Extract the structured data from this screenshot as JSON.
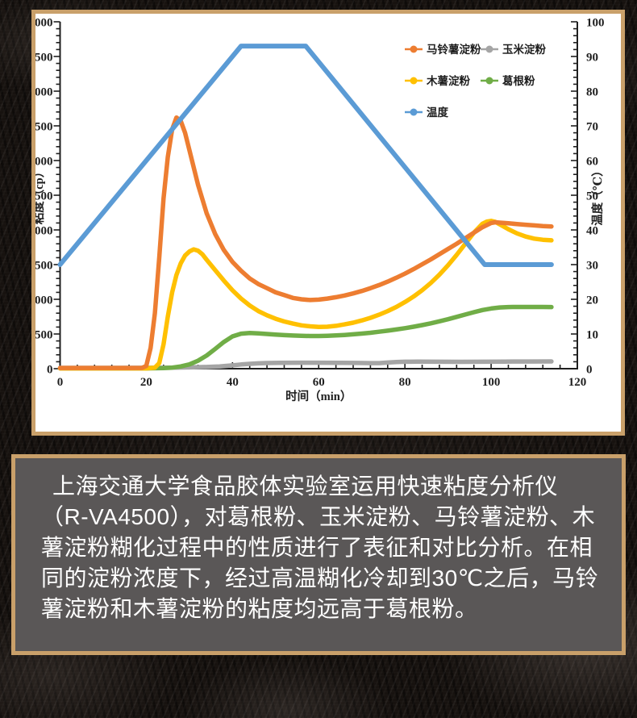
{
  "page": {
    "background_color": "#17120f"
  },
  "chart_card": {
    "border_color": "#c9a06a",
    "background": "#ffffff"
  },
  "caption_card": {
    "border_color": "#c9a06a",
    "background": "#5a5757",
    "text_color": "#ffffff"
  },
  "caption": {
    "text": "上海交通大学食品胶体实验室运用快速粘度分析仪（R-VA4500），对葛根粉、玉米淀粉、马铃薯淀粉、木薯淀粉糊化过程中的性质进行了表征和对比分析。在相同的淀粉浓度下，经过高温糊化冷却到30℃之后，马铃薯淀粉和木薯淀粉的粘度均远高于葛根粉。"
  },
  "chart_data": {
    "type": "line",
    "title": "",
    "xlabel": "时间（min）",
    "ylabel_left": "粘度（cp）",
    "ylabel_right": "温度（℃）",
    "xlim": [
      0,
      120
    ],
    "ylim_left": [
      0,
      5000
    ],
    "ylim_right": [
      0,
      100
    ],
    "x_major_step": 20,
    "x_minor_step": 4,
    "y_left_major_step": 500,
    "y_left_minor_step": 100,
    "y_right_major_step": 10,
    "y_right_minor_step": 2,
    "grid": false,
    "legend_position": "top-right-inside",
    "legend_columns": 2,
    "axis_color": "#1f1f1f",
    "draw_order": [
      "corn-starch",
      "kudzu-powder",
      "tapioca-starch",
      "potato-starch",
      "temperature"
    ],
    "series": [
      {
        "key": "potato-starch",
        "name": "马铃薯淀粉",
        "color": "#ED7D31",
        "axis": "left",
        "points": [
          [
            0,
            10
          ],
          [
            8,
            10
          ],
          [
            16,
            10
          ],
          [
            19,
            12
          ],
          [
            20,
            40
          ],
          [
            21,
            300
          ],
          [
            22,
            800
          ],
          [
            23,
            1600
          ],
          [
            24,
            2450
          ],
          [
            25,
            3050
          ],
          [
            26,
            3450
          ],
          [
            27,
            3620
          ],
          [
            28,
            3570
          ],
          [
            29,
            3400
          ],
          [
            30,
            3150
          ],
          [
            32,
            2650
          ],
          [
            34,
            2240
          ],
          [
            36,
            1940
          ],
          [
            38,
            1710
          ],
          [
            40,
            1540
          ],
          [
            42,
            1410
          ],
          [
            44,
            1300
          ],
          [
            46,
            1220
          ],
          [
            48,
            1160
          ],
          [
            50,
            1100
          ],
          [
            52,
            1060
          ],
          [
            54,
            1020
          ],
          [
            56,
            1000
          ],
          [
            58,
            990
          ],
          [
            60,
            995
          ],
          [
            62,
            1010
          ],
          [
            64,
            1030
          ],
          [
            66,
            1055
          ],
          [
            68,
            1085
          ],
          [
            70,
            1120
          ],
          [
            72,
            1160
          ],
          [
            74,
            1205
          ],
          [
            76,
            1255
          ],
          [
            78,
            1310
          ],
          [
            80,
            1370
          ],
          [
            82,
            1435
          ],
          [
            84,
            1505
          ],
          [
            86,
            1575
          ],
          [
            88,
            1650
          ],
          [
            90,
            1725
          ],
          [
            92,
            1800
          ],
          [
            94,
            1880
          ],
          [
            96,
            1960
          ],
          [
            98,
            2040
          ],
          [
            100,
            2100
          ],
          [
            101,
            2110
          ],
          [
            102,
            2105
          ],
          [
            104,
            2095
          ],
          [
            106,
            2085
          ],
          [
            108,
            2075
          ],
          [
            110,
            2065
          ],
          [
            112,
            2055
          ],
          [
            114,
            2050
          ]
        ]
      },
      {
        "key": "corn-starch",
        "name": "玉米淀粉",
        "color": "#A5A5A5",
        "axis": "left",
        "points": [
          [
            0,
            12
          ],
          [
            10,
            12
          ],
          [
            20,
            13
          ],
          [
            26,
            15
          ],
          [
            30,
            19
          ],
          [
            34,
            25
          ],
          [
            37,
            33
          ],
          [
            40,
            48
          ],
          [
            42,
            60
          ],
          [
            44,
            70
          ],
          [
            46,
            77
          ],
          [
            48,
            81
          ],
          [
            51,
            84
          ],
          [
            55,
            86
          ],
          [
            60,
            86
          ],
          [
            65,
            85
          ],
          [
            69,
            83
          ],
          [
            72,
            80
          ],
          [
            74,
            80
          ],
          [
            76,
            88
          ],
          [
            78,
            95
          ],
          [
            80,
            100
          ],
          [
            83,
            102
          ],
          [
            88,
            100
          ],
          [
            93,
            99
          ],
          [
            98,
            100
          ],
          [
            103,
            102
          ],
          [
            108,
            104
          ],
          [
            114,
            105
          ]
        ]
      },
      {
        "key": "tapioca-starch",
        "name": "木薯淀粉",
        "color": "#FFC000",
        "axis": "left",
        "points": [
          [
            0,
            5
          ],
          [
            10,
            5
          ],
          [
            20,
            5
          ],
          [
            22,
            15
          ],
          [
            23,
            80
          ],
          [
            24,
            350
          ],
          [
            25,
            750
          ],
          [
            26,
            1100
          ],
          [
            27,
            1350
          ],
          [
            28,
            1520
          ],
          [
            29,
            1630
          ],
          [
            30,
            1690
          ],
          [
            31,
            1720
          ],
          [
            32,
            1700
          ],
          [
            33,
            1650
          ],
          [
            34,
            1570
          ],
          [
            36,
            1420
          ],
          [
            38,
            1270
          ],
          [
            40,
            1130
          ],
          [
            42,
            1010
          ],
          [
            44,
            910
          ],
          [
            46,
            830
          ],
          [
            48,
            770
          ],
          [
            50,
            720
          ],
          [
            52,
            680
          ],
          [
            54,
            650
          ],
          [
            56,
            625
          ],
          [
            58,
            610
          ],
          [
            60,
            602
          ],
          [
            62,
            605
          ],
          [
            64,
            618
          ],
          [
            66,
            638
          ],
          [
            68,
            663
          ],
          [
            70,
            695
          ],
          [
            72,
            733
          ],
          [
            74,
            778
          ],
          [
            76,
            830
          ],
          [
            78,
            890
          ],
          [
            80,
            960
          ],
          [
            82,
            1040
          ],
          [
            84,
            1130
          ],
          [
            86,
            1235
          ],
          [
            88,
            1355
          ],
          [
            90,
            1490
          ],
          [
            92,
            1640
          ],
          [
            94,
            1800
          ],
          [
            96,
            1960
          ],
          [
            98,
            2090
          ],
          [
            99,
            2120
          ],
          [
            100,
            2130
          ],
          [
            101,
            2115
          ],
          [
            102,
            2080
          ],
          [
            104,
            2010
          ],
          [
            106,
            1950
          ],
          [
            108,
            1905
          ],
          [
            110,
            1875
          ],
          [
            112,
            1858
          ],
          [
            114,
            1850
          ]
        ]
      },
      {
        "key": "kudzu-powder",
        "name": "葛根粉",
        "color": "#70AD47",
        "axis": "left",
        "points": [
          [
            0,
            5
          ],
          [
            10,
            5
          ],
          [
            20,
            5
          ],
          [
            24,
            8
          ],
          [
            26,
            15
          ],
          [
            28,
            32
          ],
          [
            30,
            62
          ],
          [
            32,
            115
          ],
          [
            34,
            190
          ],
          [
            36,
            285
          ],
          [
            38,
            385
          ],
          [
            40,
            465
          ],
          [
            42,
            505
          ],
          [
            44,
            514
          ],
          [
            46,
            508
          ],
          [
            48,
            500
          ],
          [
            50,
            491
          ],
          [
            52,
            484
          ],
          [
            54,
            478
          ],
          [
            56,
            473
          ],
          [
            58,
            471
          ],
          [
            60,
            471
          ],
          [
            62,
            474
          ],
          [
            64,
            479
          ],
          [
            66,
            486
          ],
          [
            68,
            495
          ],
          [
            70,
            506
          ],
          [
            72,
            518
          ],
          [
            74,
            532
          ],
          [
            76,
            548
          ],
          [
            78,
            565
          ],
          [
            80,
            584
          ],
          [
            82,
            605
          ],
          [
            84,
            628
          ],
          [
            86,
            654
          ],
          [
            88,
            682
          ],
          [
            90,
            713
          ],
          [
            92,
            746
          ],
          [
            94,
            780
          ],
          [
            96,
            814
          ],
          [
            98,
            845
          ],
          [
            100,
            868
          ],
          [
            102,
            882
          ],
          [
            104,
            888
          ],
          [
            106,
            890
          ],
          [
            108,
            890
          ],
          [
            110,
            890
          ],
          [
            112,
            889
          ],
          [
            114,
            888
          ]
        ]
      },
      {
        "key": "temperature",
        "name": "温度",
        "color": "#5B9BD5",
        "axis": "right",
        "points": [
          [
            0,
            30
          ],
          [
            42,
            93
          ],
          [
            57,
            93
          ],
          [
            98.5,
            30
          ],
          [
            114,
            30
          ]
        ]
      }
    ]
  }
}
